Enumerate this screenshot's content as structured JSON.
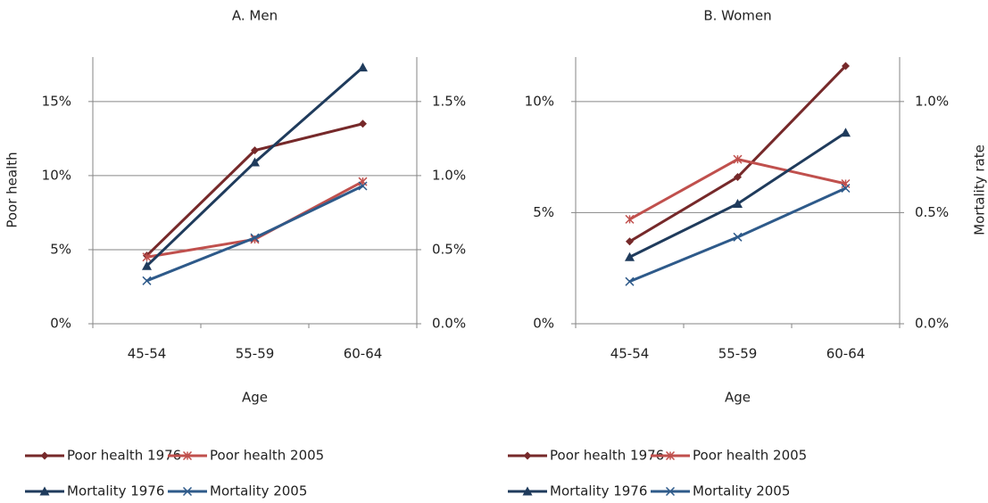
{
  "chart_data": [
    {
      "type": "line",
      "title": "A. Men",
      "x_label": "Age",
      "y_label": "Poor health",
      "categories": [
        "45-54",
        "55-59",
        "60-64"
      ],
      "ylim": [
        0,
        18
      ],
      "yticks": [
        {
          "value": 0,
          "label": "0%"
        },
        {
          "value": 5,
          "label": "5%"
        },
        {
          "value": 10,
          "label": "10%"
        },
        {
          "value": 15,
          "label": "15%"
        }
      ],
      "y2lim": [
        0,
        1.8
      ],
      "y2ticks": [
        {
          "value": 0,
          "label": "0.0%"
        },
        {
          "value": 0.5,
          "label": "0.5%"
        },
        {
          "value": 1.0,
          "label": "1.0%"
        },
        {
          "value": 1.5,
          "label": "1.5%"
        }
      ],
      "grid": true,
      "series": [
        {
          "name": "Poor health 1976",
          "color": "#76292a",
          "marker": "diamond",
          "values": [
            4.6,
            11.7,
            13.5
          ]
        },
        {
          "name": "Poor health 2005",
          "color": "#c0504d",
          "marker": "star",
          "values": [
            4.5,
            5.7,
            9.6
          ]
        },
        {
          "name": "Mortality 1976",
          "color": "#1f3b5c",
          "marker": "triangle",
          "axis": "y2",
          "values": [
            0.39,
            1.09,
            1.73
          ]
        },
        {
          "name": "Mortality 2005",
          "color": "#2e5a8a",
          "marker": "x",
          "axis": "y2",
          "values": [
            0.29,
            0.58,
            0.93
          ]
        }
      ]
    },
    {
      "type": "line",
      "title": "B. Women",
      "x_label": "Age",
      "y2_label": "Mortality rate",
      "categories": [
        "45-54",
        "55-59",
        "60-64"
      ],
      "ylim": [
        0,
        12
      ],
      "yticks": [
        {
          "value": 0,
          "label": "0%"
        },
        {
          "value": 5,
          "label": "5%"
        },
        {
          "value": 10,
          "label": "10%"
        }
      ],
      "y2lim": [
        0,
        1.2
      ],
      "y2ticks": [
        {
          "value": 0,
          "label": "0.0%"
        },
        {
          "value": 0.5,
          "label": "0.5%"
        },
        {
          "value": 1.0,
          "label": "1.0%"
        }
      ],
      "grid": true,
      "series": [
        {
          "name": "Poor health 1976",
          "color": "#76292a",
          "marker": "diamond",
          "values": [
            3.7,
            6.6,
            11.6
          ]
        },
        {
          "name": "Poor health 2005",
          "color": "#c0504d",
          "marker": "star",
          "values": [
            4.7,
            7.4,
            6.3
          ]
        },
        {
          "name": "Mortality 1976",
          "color": "#1f3b5c",
          "marker": "triangle",
          "axis": "y2",
          "values": [
            0.3,
            0.54,
            0.86
          ]
        },
        {
          "name": "Mortality 2005",
          "color": "#2e5a8a",
          "marker": "x",
          "axis": "y2",
          "values": [
            0.19,
            0.39,
            0.61
          ]
        }
      ]
    }
  ]
}
